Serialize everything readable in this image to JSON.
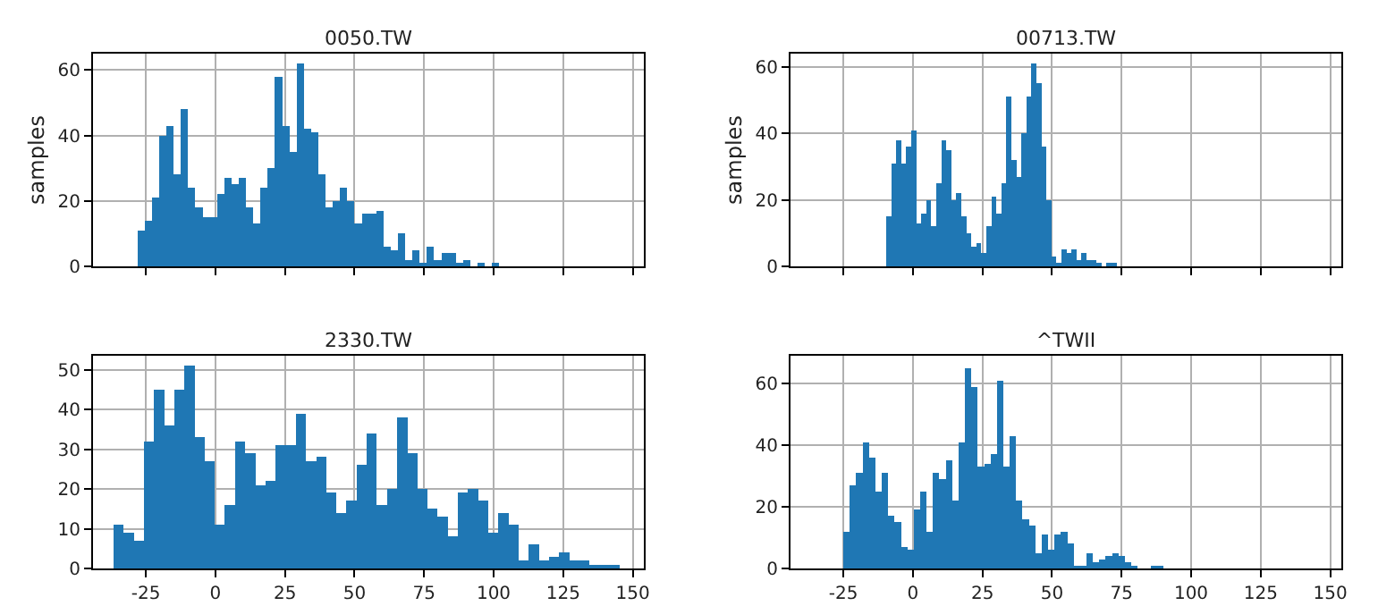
{
  "chart_data": [
    {
      "type": "histogram",
      "title": "0050.TW",
      "ylabel": "samples",
      "color": "#1f77b4",
      "grid": true,
      "tick_labels": "y",
      "xlim": [
        -44,
        154
      ],
      "xticks": [
        -25,
        0,
        25,
        50,
        75,
        100,
        125,
        150
      ],
      "ylim": [
        0,
        65
      ],
      "yticks": [
        0,
        20,
        40,
        60
      ],
      "bins": [
        -28,
        -25.4,
        -22.8,
        -20.2,
        -17.6,
        -15,
        -12.4,
        -9.8,
        -7.2,
        -4.6,
        -2,
        0.6,
        3.2,
        5.8,
        8.4,
        11,
        13.6,
        16.2,
        18.8,
        21.4,
        24,
        26.6,
        29.2,
        31.8,
        34.4,
        37,
        39.6,
        42.2,
        44.8,
        47.4,
        50,
        52.6,
        55.2,
        57.8,
        60.4,
        63,
        65.6,
        68.2,
        70.8,
        73.4,
        76,
        78.6,
        81.2,
        83.8,
        86.4,
        89,
        91.6,
        94.2,
        96.8,
        99.4,
        102
      ],
      "values": [
        11,
        14,
        21,
        40,
        43,
        28,
        48,
        24,
        18,
        15,
        15,
        22,
        27,
        25,
        27,
        18,
        13,
        24,
        30,
        58,
        43,
        35,
        62,
        42,
        41,
        28,
        18,
        20,
        24,
        20,
        13,
        16,
        16,
        17,
        6,
        5,
        10,
        2,
        5,
        1,
        6,
        2,
        4,
        4,
        1,
        2,
        0,
        1,
        0,
        1
      ]
    },
    {
      "type": "histogram",
      "title": "00713.TW",
      "ylabel": "samples",
      "color": "#1f77b4",
      "grid": true,
      "tick_labels": "y",
      "xlim": [
        -44,
        154
      ],
      "xticks": [
        -25,
        0,
        25,
        50,
        75,
        100,
        125,
        150
      ],
      "ylim": [
        0,
        64
      ],
      "yticks": [
        0,
        20,
        40,
        60
      ],
      "bins": [
        -9.6,
        -7.8,
        -6,
        -4.2,
        -2.4,
        -0.6,
        1.2,
        3,
        4.8,
        6.6,
        8.4,
        10.2,
        12,
        13.8,
        15.6,
        17.4,
        19.2,
        21,
        22.8,
        24.6,
        26.4,
        28.2,
        30,
        31.8,
        33.6,
        35.4,
        37.2,
        39,
        40.8,
        42.6,
        44.4,
        46.2,
        48,
        49.8,
        51.6,
        53.4,
        55.2,
        57,
        58.8,
        60.6,
        62.4,
        64.2,
        66,
        67.8,
        69.6,
        71.4,
        73.2
      ],
      "values": [
        15,
        31,
        38,
        31,
        36,
        41,
        13,
        16,
        20,
        12,
        25,
        38,
        35,
        20,
        22,
        15,
        10,
        6,
        7,
        4,
        12,
        21,
        16,
        25,
        51,
        32,
        27,
        40,
        51,
        61,
        55,
        36,
        20,
        3,
        1,
        5,
        4,
        5,
        2,
        4,
        2,
        2,
        1,
        0,
        1,
        1
      ]
    },
    {
      "type": "histogram",
      "title": "2330.TW",
      "color": "#1f77b4",
      "grid": true,
      "xlim": [
        -44,
        154
      ],
      "xticks": [
        -25,
        0,
        25,
        50,
        75,
        100,
        125,
        150
      ],
      "ylim": [
        0,
        53.5
      ],
      "yticks": [
        0,
        10,
        20,
        30,
        40,
        50
      ],
      "bins": [
        -36.6,
        -33,
        -29.3,
        -25.7,
        -22,
        -18.4,
        -14.8,
        -11.1,
        -7.5,
        -3.8,
        -0.2,
        3.4,
        7.1,
        10.7,
        14.4,
        18,
        21.6,
        25.3,
        28.9,
        32.6,
        36.2,
        39.8,
        43.5,
        47.1,
        50.8,
        54.4,
        58,
        61.7,
        65.3,
        69,
        72.6,
        76.2,
        79.9,
        83.5,
        87.2,
        90.8,
        94.4,
        98.1,
        101.7,
        105.4,
        109,
        112.6,
        116.3,
        119.9,
        123.6,
        127.2,
        130.8,
        134.5,
        138.1,
        141.8,
        145.4
      ],
      "values": [
        11,
        9,
        7,
        32,
        45,
        36,
        45,
        51,
        33,
        27,
        11,
        16,
        32,
        29,
        21,
        22,
        31,
        31,
        39,
        27,
        28,
        19,
        14,
        17,
        26,
        34,
        16,
        20,
        38,
        29,
        20,
        15,
        13,
        8,
        19,
        20,
        17,
        9,
        14,
        11,
        2,
        6,
        2,
        3,
        4,
        2,
        2,
        1,
        1,
        1
      ]
    },
    {
      "type": "histogram",
      "title": "^TWII",
      "color": "#1f77b4",
      "grid": true,
      "xlim": [
        -44,
        154
      ],
      "xticks": [
        -25,
        0,
        25,
        50,
        75,
        100,
        125,
        150
      ],
      "ylim": [
        0,
        69
      ],
      "yticks": [
        0,
        20,
        40,
        60
      ],
      "bins": [
        -25,
        -22.7,
        -20.4,
        -18.1,
        -15.8,
        -13.5,
        -11.2,
        -8.9,
        -6.6,
        -4.3,
        -2,
        0.3,
        2.6,
        4.9,
        7.2,
        9.5,
        11.8,
        14.1,
        16.4,
        18.7,
        21,
        23.3,
        25.6,
        27.9,
        30.2,
        32.5,
        34.8,
        37.1,
        39.4,
        41.7,
        44,
        46.3,
        48.6,
        50.9,
        53.2,
        55.5,
        57.8,
        60.1,
        62.4,
        64.7,
        67,
        69.3,
        71.6,
        73.9,
        76.2,
        78.5,
        80.8,
        83.1,
        85.4,
        87.7,
        90
      ],
      "values": [
        12,
        27,
        31,
        41,
        36,
        25,
        31,
        17,
        15,
        7,
        6,
        19,
        25,
        12,
        31,
        29,
        35,
        22,
        41,
        65,
        59,
        33,
        34,
        37,
        61,
        33,
        43,
        22,
        16,
        14,
        5,
        11,
        6,
        11,
        12,
        8,
        1,
        1,
        5,
        2,
        3,
        4,
        5,
        4,
        2,
        1,
        0,
        0,
        1,
        1
      ]
    }
  ]
}
